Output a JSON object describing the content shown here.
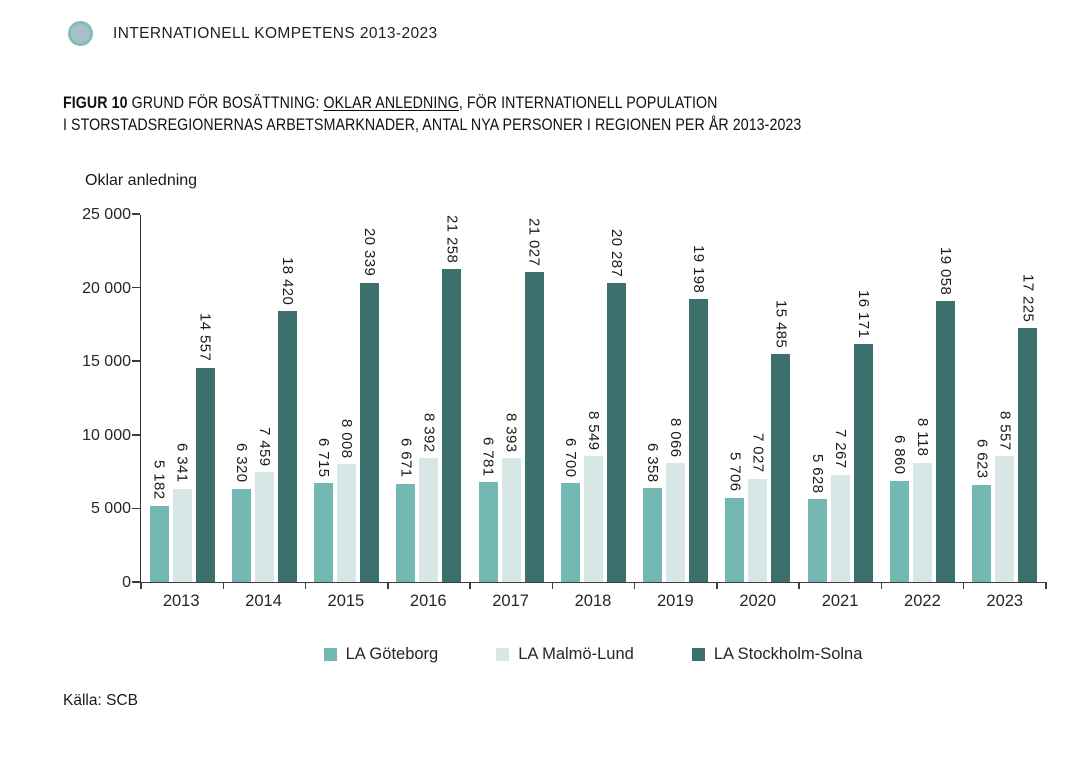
{
  "header": {
    "brand_label": "INTERNATIONELL KOMPETENS 2013-2023"
  },
  "figure": {
    "label": "FIGUR 10",
    "title_pre": " GRUND FÖR BOSÄTTNING: ",
    "title_underlined": "OKLAR ANLEDNING",
    "title_post": ", FÖR INTERNATIONELL POPULATION",
    "title_line2": "I STORSTADSREGIONERNAS ARBETSMARKNADER, ANTAL NYA PERSONER I REGIONEN PER ÅR 2013-2023"
  },
  "chart_data": {
    "type": "bar",
    "title": "Oklar anledning",
    "xlabel": "",
    "ylabel": "Oklar anledning",
    "categories": [
      "2013",
      "2014",
      "2015",
      "2016",
      "2017",
      "2018",
      "2019",
      "2020",
      "2021",
      "2022",
      "2023"
    ],
    "series": [
      {
        "name": "LA Göteborg",
        "color": "#74B8B4",
        "values": [
          5182,
          6320,
          6715,
          6671,
          6781,
          6700,
          6358,
          5706,
          5628,
          6860,
          6623
        ],
        "labels": [
          "5 182",
          "6 320",
          "6 715",
          "6 671",
          "6 781",
          "6 700",
          "6 358",
          "5 706",
          "5 628",
          "6 860",
          "6 623"
        ]
      },
      {
        "name": "LA Malmö-Lund",
        "color": "#D7E7E5",
        "values": [
          6341,
          7459,
          8008,
          8392,
          8393,
          8549,
          8066,
          7027,
          7267,
          8118,
          8557
        ],
        "labels": [
          "6 341",
          "7 459",
          "8 008",
          "8 392",
          "8 393",
          "8 549",
          "8 066",
          "7 027",
          "7 267",
          "8 118",
          "8 557"
        ]
      },
      {
        "name": "LA Stockholm-Solna",
        "color": "#3B706D",
        "values": [
          14557,
          18420,
          20339,
          21258,
          21027,
          20287,
          19198,
          15485,
          16171,
          19058,
          17225
        ],
        "labels": [
          "14 557",
          "18 420",
          "20 339",
          "21 258",
          "21 027",
          "20 287",
          "19 198",
          "15 485",
          "16 171",
          "19 058",
          "17 225"
        ]
      }
    ],
    "ylim": [
      0,
      25000
    ],
    "ytick_values": [
      0,
      5000,
      10000,
      15000,
      20000,
      25000
    ],
    "ytick_labels": [
      "0",
      "5 000",
      "10 000",
      "15 000",
      "20 000",
      "25 000"
    ],
    "grid": false,
    "legend_position": "bottom",
    "bar_label_orientation": "vertical"
  },
  "source": "Källa: SCB",
  "colors": {
    "axis": "#3C3C3C",
    "brand_circle_fill": "#A9BFC7",
    "brand_circle_border": "#87BCB5"
  }
}
